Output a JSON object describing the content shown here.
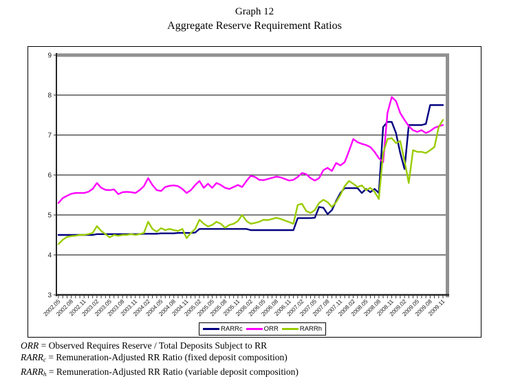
{
  "page": {
    "title_line1": "Graph 12",
    "title_line2": "Aggregate Reserve Requirement Ratios"
  },
  "chart_data": {
    "type": "line",
    "title": "Aggregate Reserve Requirement Ratios",
    "grid": "horizontal",
    "legend_position": "bottom",
    "ylim": [
      3,
      9
    ],
    "yticks": [
      3,
      4,
      5,
      6,
      7,
      8,
      9
    ],
    "x_label_interval": 3,
    "categories": [
      "2002.05",
      "2002.06",
      "2002.07",
      "2002.08",
      "2002.09",
      "2002.10",
      "2002.11",
      "2002.12",
      "2003.01",
      "2003.02",
      "2003.03",
      "2003.04",
      "2003.05",
      "2003.06",
      "2003.07",
      "2003.08",
      "2003.09",
      "2003.10",
      "2003.11",
      "2003.12",
      "2004.01",
      "2004.02",
      "2004.03",
      "2004.04",
      "2004.05",
      "2004.06",
      "2004.07",
      "2004.08",
      "2004.09",
      "2004.10",
      "2004.11",
      "2004.12",
      "2005.01",
      "2005.02",
      "2005.03",
      "2005.04",
      "2005.05",
      "2005.06",
      "2005.07",
      "2005.08",
      "2005.09",
      "2005.10",
      "2005.11",
      "2005.12",
      "2006.01",
      "2006.02",
      "2006.03",
      "2006.04",
      "2006.05",
      "2006.06",
      "2006.07",
      "2006.08",
      "2006.09",
      "2006.10",
      "2006.11",
      "2006.12",
      "2007.01",
      "2007.02",
      "2007.03",
      "2007.04",
      "2007.05",
      "2007.06",
      "2007.07",
      "2007.08",
      "2007.09",
      "2007.10",
      "2007.11",
      "2007.12",
      "2008.01",
      "2008.02",
      "2008.03",
      "2008.04",
      "2008.05",
      "2008.06",
      "2008.07",
      "2008.08",
      "2008.09",
      "2008.10",
      "2008.11",
      "2008.12",
      "2009.01",
      "2009.02",
      "2009.03",
      "2009.04",
      "2009.05",
      "2009.06",
      "2009.07",
      "2009.08",
      "2009.09",
      "2009.10",
      "2009.11"
    ],
    "series": [
      {
        "name": "RARRc",
        "color": "#000080",
        "values": [
          4.5,
          4.5,
          4.5,
          4.5,
          4.5,
          4.5,
          4.5,
          4.5,
          4.5,
          4.52,
          4.52,
          4.52,
          4.52,
          4.52,
          4.52,
          4.52,
          4.52,
          4.52,
          4.52,
          4.52,
          4.53,
          4.53,
          4.53,
          4.53,
          4.54,
          4.54,
          4.54,
          4.54,
          4.55,
          4.55,
          4.55,
          4.55,
          4.56,
          4.65,
          4.65,
          4.65,
          4.65,
          4.65,
          4.65,
          4.65,
          4.65,
          4.65,
          4.65,
          4.65,
          4.65,
          4.62,
          4.62,
          4.62,
          4.62,
          4.62,
          4.62,
          4.62,
          4.62,
          4.62,
          4.62,
          4.62,
          4.92,
          4.92,
          4.92,
          4.92,
          4.93,
          5.2,
          5.18,
          5.02,
          5.12,
          5.35,
          5.55,
          5.67,
          5.67,
          5.67,
          5.67,
          5.55,
          5.65,
          5.57,
          5.65,
          5.55,
          7.2,
          7.33,
          7.33,
          7.05,
          6.55,
          6.15,
          7.25,
          7.25,
          7.25,
          7.25,
          7.28,
          7.75,
          7.75,
          7.75,
          7.75
        ]
      },
      {
        "name": "ORR",
        "color": "#FF00FF",
        "values": [
          5.3,
          5.42,
          5.48,
          5.53,
          5.55,
          5.55,
          5.55,
          5.58,
          5.65,
          5.8,
          5.68,
          5.63,
          5.62,
          5.64,
          5.52,
          5.57,
          5.58,
          5.57,
          5.55,
          5.62,
          5.72,
          5.92,
          5.75,
          5.62,
          5.6,
          5.7,
          5.73,
          5.74,
          5.72,
          5.65,
          5.55,
          5.62,
          5.75,
          5.85,
          5.68,
          5.78,
          5.68,
          5.8,
          5.75,
          5.68,
          5.65,
          5.7,
          5.75,
          5.7,
          5.85,
          5.98,
          5.95,
          5.88,
          5.87,
          5.9,
          5.93,
          5.96,
          5.94,
          5.9,
          5.86,
          5.88,
          5.95,
          6.05,
          6.02,
          5.92,
          5.86,
          5.92,
          6.12,
          6.18,
          6.1,
          6.3,
          6.24,
          6.32,
          6.6,
          6.9,
          6.82,
          6.78,
          6.75,
          6.7,
          6.58,
          6.42,
          6.32,
          7.55,
          7.95,
          7.85,
          7.55,
          7.38,
          7.22,
          7.12,
          7.08,
          7.12,
          7.05,
          7.1,
          7.18,
          7.22,
          7.25
        ]
      },
      {
        "name": "RARRh",
        "color": "#99CC00",
        "values": [
          4.27,
          4.38,
          4.45,
          4.47,
          4.48,
          4.5,
          4.5,
          4.52,
          4.55,
          4.72,
          4.6,
          4.52,
          4.44,
          4.5,
          4.48,
          4.5,
          4.5,
          4.52,
          4.5,
          4.52,
          4.55,
          4.83,
          4.65,
          4.58,
          4.67,
          4.62,
          4.65,
          4.62,
          4.6,
          4.65,
          4.42,
          4.55,
          4.65,
          4.88,
          4.78,
          4.71,
          4.75,
          4.83,
          4.78,
          4.68,
          4.75,
          4.78,
          4.85,
          5.0,
          4.85,
          4.78,
          4.8,
          4.83,
          4.88,
          4.87,
          4.9,
          4.93,
          4.9,
          4.86,
          4.82,
          4.78,
          5.25,
          5.28,
          5.1,
          5.05,
          5.12,
          5.3,
          5.38,
          5.32,
          5.2,
          5.32,
          5.5,
          5.72,
          5.85,
          5.78,
          5.7,
          5.74,
          5.62,
          5.68,
          5.58,
          5.4,
          6.55,
          6.9,
          6.92,
          6.8,
          6.85,
          6.35,
          5.8,
          6.62,
          6.58,
          6.58,
          6.55,
          6.62,
          6.7,
          7.2,
          7.38
        ]
      }
    ]
  },
  "footnotes": [
    {
      "term": "ORR",
      "sub": "",
      "definition": "=  Observed Requires Reserve / Total Deposits Subject  to RR"
    },
    {
      "term": "RARR",
      "sub": "c",
      "definition": "= Remuneration-Adjusted RR Ratio (fixed deposit composition)"
    },
    {
      "term": "RARR",
      "sub": "h",
      "definition": "= Remuneration-Adjusted RR Ratio (variable deposit composition)"
    }
  ],
  "style": {
    "wall_gray": "#909090",
    "gridline_color": "#000000",
    "axis_color": "#262626",
    "tick_label_color": "#1a1a1a"
  }
}
